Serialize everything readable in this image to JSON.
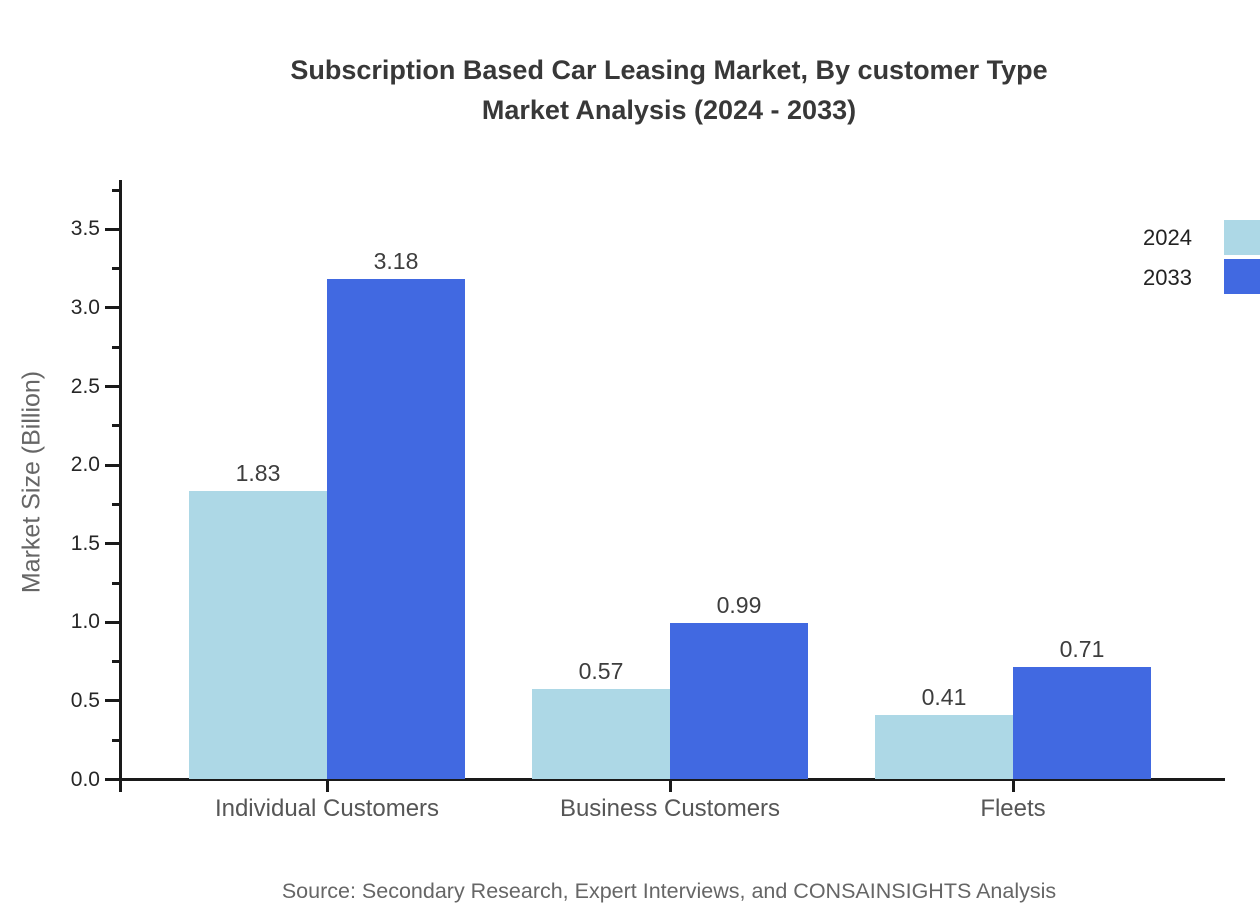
{
  "title": {
    "line1": "Subscription Based Car Leasing Market, By customer Type",
    "line2": "Market Analysis (2024 - 2033)"
  },
  "legend": {
    "items": [
      {
        "label": "2024",
        "color": "#ADD8E6"
      },
      {
        "label": "2033",
        "color": "#4169E1"
      }
    ]
  },
  "source": "Source: Secondary Research, Expert Interviews, and CONSAINSIGHTS Analysis",
  "chart_data": {
    "type": "bar",
    "title": "Subscription Based Car Leasing Market, By customer Type Market Analysis (2024 - 2033)",
    "categories": [
      "Individual Customers",
      "Business Customers",
      "Fleets"
    ],
    "series": [
      {
        "name": "2024",
        "color": "#ADD8E6",
        "values": [
          1.83,
          0.57,
          0.41
        ]
      },
      {
        "name": "2033",
        "color": "#4169E1",
        "values": [
          3.18,
          0.99,
          0.71
        ]
      }
    ],
    "value_labels": [
      "1.83",
      "3.18",
      "0.57",
      "0.99",
      "0.41",
      "0.71"
    ],
    "xlabel": "",
    "ylabel": "Market Size (Billion)",
    "ylim": [
      0,
      3.8
    ],
    "yticks": [
      0.0,
      0.5,
      1.0,
      1.5,
      2.0,
      2.5,
      3.0,
      3.5
    ],
    "ytick_labels": [
      "0.0",
      "0.5",
      "1.0",
      "1.5",
      "2.0",
      "2.5",
      "3.0",
      "3.5"
    ],
    "minor_tick_step": 0.25,
    "grid": false,
    "legend_position": "upper right",
    "bar_value_labels_shown": true
  }
}
